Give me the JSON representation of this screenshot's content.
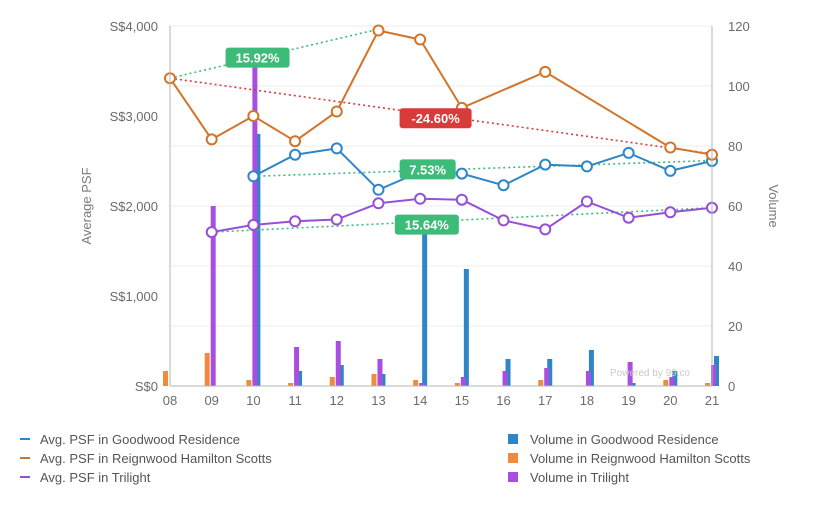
{
  "chart_data": {
    "type": "bar+line",
    "categories": [
      "08",
      "09",
      "10",
      "11",
      "12",
      "13",
      "14",
      "15",
      "16",
      "17",
      "18",
      "19",
      "20",
      "21"
    ],
    "y_left": {
      "label": "Average PSF",
      "range": [
        0,
        4000
      ],
      "ticks": [
        "S$0",
        "S$1,000",
        "S$2,000",
        "S$3,000",
        "S$4,000"
      ]
    },
    "y_right": {
      "label": "Volume",
      "range": [
        0,
        120
      ],
      "ticks": [
        "0",
        "20",
        "40",
        "60",
        "80",
        "100",
        "120"
      ]
    },
    "line_series": [
      {
        "name": "Avg. PSF in Goodwood Residence",
        "color": "#2f86c7",
        "values": [
          null,
          null,
          2330,
          2570,
          2640,
          2180,
          2380,
          2360,
          2230,
          2460,
          2440,
          2590,
          2390,
          2500
        ]
      },
      {
        "name": "Avg. PSF in Reignwood Hamilton Scotts",
        "color": "#d2742a",
        "values": [
          3420,
          2740,
          3000,
          2720,
          3050,
          3950,
          3850,
          3090,
          null,
          3490,
          null,
          null,
          2650,
          2570
        ]
      },
      {
        "name": "Avg. PSF in Trilight",
        "color": "#9650d6",
        "values": [
          null,
          1710,
          1790,
          1830,
          1850,
          2030,
          2080,
          2070,
          1840,
          1740,
          2050,
          1870,
          1930,
          1980
        ]
      }
    ],
    "bar_series": [
      {
        "name": "Volume in Goodwood Residence",
        "color": "#2f86c7",
        "values": [
          0,
          0,
          84,
          5,
          7,
          4,
          54,
          39,
          9,
          9,
          12,
          1,
          5,
          10
        ]
      },
      {
        "name": "Volume in Reignwood Hamilton Scotts",
        "color": "#f08a3c",
        "values": [
          5,
          11,
          2,
          1,
          3,
          4,
          2,
          1,
          0,
          2,
          0,
          0,
          2,
          1
        ]
      },
      {
        "name": "Volume in Trilight",
        "color": "#a84fe2",
        "values": [
          0,
          60,
          108,
          13,
          15,
          9,
          1,
          3,
          5,
          6,
          5,
          8,
          3,
          7
        ]
      }
    ],
    "trend_lines": [
      {
        "label": "15.92%",
        "color": "#3dbb78",
        "from_index": 0,
        "from_value": 3420,
        "to_index": 5,
        "to_value": 3965
      },
      {
        "label": "-24.60%",
        "color": "#d93a3a",
        "from_index": 0,
        "from_value": 3420,
        "to_index": 13,
        "to_value": 2580
      },
      {
        "label": "7.53%",
        "color": "#3dbb78",
        "from_index": 2,
        "from_value": 2330,
        "to_index": 13,
        "to_value": 2505
      },
      {
        "label": "15.64%",
        "color": "#3dbb78",
        "from_index": 1,
        "from_value": 1710,
        "to_index": 13,
        "to_value": 1980
      }
    ],
    "watermark": "Powered by 99.co"
  }
}
